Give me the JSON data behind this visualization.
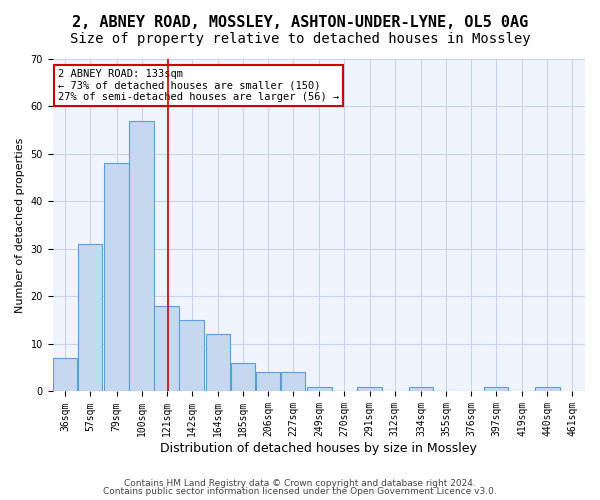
{
  "title1": "2, ABNEY ROAD, MOSSLEY, ASHTON-UNDER-LYNE, OL5 0AG",
  "title2": "Size of property relative to detached houses in Mossley",
  "xlabel": "Distribution of detached houses by size in Mossley",
  "ylabel": "Number of detached properties",
  "footer1": "Contains HM Land Registry data © Crown copyright and database right 2024.",
  "footer2": "Contains public sector information licensed under the Open Government Licence v3.0.",
  "annotation_line1": "2 ABNEY ROAD: 133sqm",
  "annotation_line2": "← 73% of detached houses are smaller (150)",
  "annotation_line3": "27% of semi-detached houses are larger (56) →",
  "property_size": 133,
  "bar_values": [
    7,
    31,
    48,
    57,
    18,
    15,
    12,
    6,
    4,
    4,
    1,
    0,
    1,
    0,
    1,
    0,
    0,
    1,
    0,
    1
  ],
  "bin_labels": [
    "36sqm",
    "57sqm",
    "79sqm",
    "100sqm",
    "121sqm",
    "142sqm",
    "164sqm",
    "185sqm",
    "206sqm",
    "227sqm",
    "249sqm",
    "270sqm",
    "291sqm",
    "312sqm",
    "334sqm",
    "355sqm",
    "376sqm",
    "397sqm",
    "419sqm",
    "440sqm",
    "461sqm"
  ],
  "bin_edges": [
    36,
    57,
    79,
    100,
    121,
    142,
    164,
    185,
    206,
    227,
    249,
    270,
    291,
    312,
    334,
    355,
    376,
    397,
    419,
    440,
    461
  ],
  "bar_color": "#c5d8f0",
  "bar_edge_color": "#5a9fd4",
  "vline_color": "#cc0000",
  "vline_x": 133,
  "ylim": [
    0,
    70
  ],
  "yticks": [
    0,
    10,
    20,
    30,
    40,
    50,
    60,
    70
  ],
  "annotation_box_color": "#cc0000",
  "bg_color": "#f0f4ff",
  "grid_color": "#c8d4e8",
  "title1_fontsize": 11,
  "title2_fontsize": 10,
  "xlabel_fontsize": 9,
  "ylabel_fontsize": 8,
  "tick_fontsize": 7,
  "footer_fontsize": 6.5,
  "annotation_fontsize": 7.5
}
